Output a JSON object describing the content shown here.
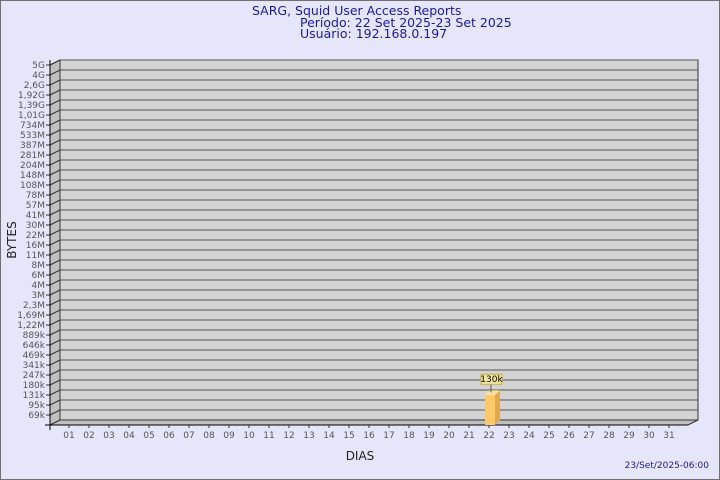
{
  "header": {
    "title": "SARG, Squid User Access Reports",
    "period": "Período: 22 Set 2025-23 Set 2025",
    "user": "Usuário: 192.168.0.197"
  },
  "footer": {
    "timestamp": "23/Set/2025-06:00"
  },
  "colors": {
    "background": "#e6e6fa",
    "plot": "#d3d3d3",
    "wall": "#c0c0c0",
    "bar": "#ffc868",
    "bar_side": "#e0a850",
    "title": "#1a1aa0"
  },
  "chart_data": {
    "type": "bar",
    "xlabel": "DIAS",
    "ylabel": "BYTES",
    "y_scale": "log-like",
    "y_ticks": [
      "5G",
      "4G",
      "2,6G",
      "1,92G",
      "1,39G",
      "1,01G",
      "734M",
      "533M",
      "387M",
      "281M",
      "204M",
      "148M",
      "108M",
      "78M",
      "57M",
      "41M",
      "30M",
      "22M",
      "16M",
      "11M",
      "8M",
      "6M",
      "4M",
      "3M",
      "2,3M",
      "1,69M",
      "1,22M",
      "889k",
      "646k",
      "469k",
      "341k",
      "247k",
      "180k",
      "131k",
      "95k",
      "69k"
    ],
    "categories": [
      "01",
      "02",
      "03",
      "04",
      "05",
      "06",
      "07",
      "08",
      "09",
      "10",
      "11",
      "12",
      "13",
      "14",
      "15",
      "16",
      "17",
      "18",
      "19",
      "20",
      "21",
      "22",
      "23",
      "24",
      "25",
      "26",
      "27",
      "28",
      "29",
      "30",
      "31"
    ],
    "bars": [
      {
        "category": "22",
        "value": 130000,
        "label": "130k"
      }
    ],
    "grid": true
  }
}
